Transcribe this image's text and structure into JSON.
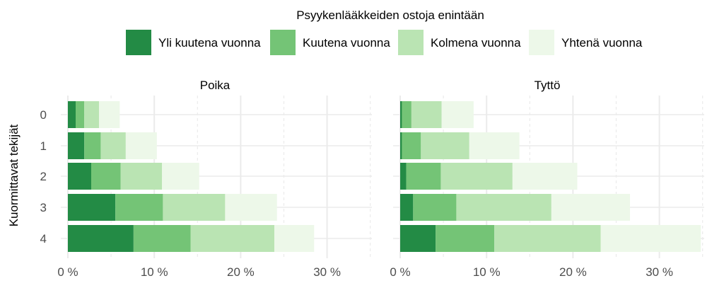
{
  "chart_data": {
    "type": "bar",
    "orientation": "horizontal",
    "stacked": true,
    "legend": {
      "title": "Psyykenlääkkeiden ostoja enintään",
      "placement": "top"
    },
    "ylabel": "Kuormittavat tekijät",
    "xlabel": "",
    "categories": [
      "0",
      "1",
      "2",
      "3",
      "4"
    ],
    "xlim": [
      0,
      35
    ],
    "x_ticks": [
      0,
      10,
      20,
      30
    ],
    "x_tick_labels": [
      "0 %",
      "10 %",
      "20 %",
      "30 %"
    ],
    "grid": true,
    "series": [
      {
        "name": "Yli kuutena vuonna",
        "color": "#238b45"
      },
      {
        "name": "Kuutena vuonna",
        "color": "#74c476"
      },
      {
        "name": "Kolmena vuonna",
        "color": "#bae4b3"
      },
      {
        "name": "Yhtenä vuonna",
        "color": "#edf8e9"
      }
    ],
    "panels": [
      {
        "title": "Poika",
        "values": [
          [
            0.9,
            1.0,
            1.7,
            2.4
          ],
          [
            1.9,
            1.9,
            2.9,
            3.6
          ],
          [
            2.7,
            3.4,
            4.8,
            4.3
          ],
          [
            5.5,
            5.5,
            7.2,
            6.0
          ],
          [
            7.6,
            6.6,
            9.7,
            4.6
          ]
        ]
      },
      {
        "title": "Tyttö",
        "values": [
          [
            0.2,
            1.1,
            3.5,
            3.7
          ],
          [
            0.2,
            2.2,
            5.6,
            5.8
          ],
          [
            0.7,
            4.0,
            8.3,
            7.5
          ],
          [
            1.5,
            5.0,
            11.0,
            9.1
          ],
          [
            4.1,
            6.8,
            12.3,
            11.6
          ]
        ]
      }
    ]
  }
}
